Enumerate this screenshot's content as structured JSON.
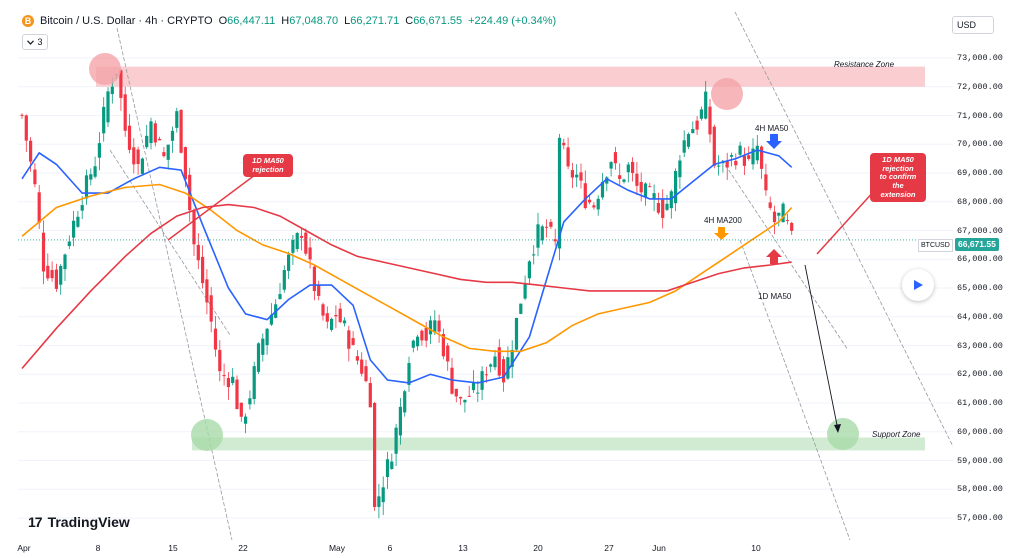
{
  "header": {
    "symbol": "Bitcoin / U.S. Dollar · 4h · CRYPTO",
    "open_label": "O",
    "open": "66,447.11",
    "high_label": "H",
    "high": "67,048.70",
    "low_label": "L",
    "low": "66,271.71",
    "close_label": "C",
    "close": "66,671.55",
    "change": "+224.49 (+0.34%)",
    "coin_glyph": "B"
  },
  "collapse_button": {
    "count": "3",
    "icon": "chevron-down-icon"
  },
  "currency_button": "USD",
  "price_badge": "66,671.55",
  "symbol_badge": "BTCUSD",
  "logo_text": "TradingView",
  "logo_mark": "17",
  "colors": {
    "up": "#089981",
    "down": "#f23645",
    "ma_blue": "#2962ff",
    "ma_orange": "#ff9800",
    "ma_red": "#e53945",
    "zone_red": "#f8b4b8",
    "zone_green": "#b7e1b8"
  },
  "chart_data": {
    "type": "candlestick",
    "timeframe": "4h",
    "y_ticks": [
      "73,000.00",
      "72,000.00",
      "71,000.00",
      "70,000.00",
      "69,000.00",
      "68,000.00",
      "67,000.00",
      "66,000.00",
      "65,000.00",
      "64,000.00",
      "63,000.00",
      "62,000.00",
      "61,000.00",
      "60,000.00",
      "59,000.00",
      "58,000.00",
      "57,000.00"
    ],
    "x_ticks": [
      "Apr",
      "8",
      "15",
      "22",
      "May",
      "6",
      "13",
      "20",
      "27",
      "Jun",
      "10"
    ],
    "ylim": [
      56600,
      73800
    ],
    "close_path": [
      [
        0,
        71000
      ],
      [
        3,
        68500
      ],
      [
        5,
        65800
      ],
      [
        8,
        65200
      ],
      [
        11,
        66800
      ],
      [
        14,
        68200
      ],
      [
        17,
        69400
      ],
      [
        20,
        71800
      ],
      [
        22,
        72600
      ],
      [
        24,
        70500
      ],
      [
        27,
        69200
      ],
      [
        30,
        70800
      ],
      [
        33,
        69500
      ],
      [
        36,
        71000
      ],
      [
        38,
        69000
      ],
      [
        40,
        66500
      ],
      [
        42,
        65200
      ],
      [
        44,
        63800
      ],
      [
        46,
        62000
      ],
      [
        49,
        61800
      ],
      [
        51,
        60200
      ],
      [
        53,
        61300
      ],
      [
        55,
        62800
      ],
      [
        57,
        63700
      ],
      [
        59,
        64500
      ],
      [
        61,
        65600
      ],
      [
        63,
        66400
      ],
      [
        65,
        67000
      ],
      [
        67,
        65700
      ],
      [
        69,
        64400
      ],
      [
        71,
        63600
      ],
      [
        73,
        64100
      ],
      [
        75,
        63600
      ],
      [
        77,
        62800
      ],
      [
        79,
        62200
      ],
      [
        81,
        61200
      ],
      [
        82,
        57300
      ],
      [
        84,
        58300
      ],
      [
        86,
        59300
      ],
      [
        88,
        60800
      ],
      [
        90,
        62700
      ],
      [
        92,
        63600
      ],
      [
        94,
        63300
      ],
      [
        96,
        63900
      ],
      [
        98,
        62900
      ],
      [
        100,
        61600
      ],
      [
        102,
        61000
      ],
      [
        104,
        61300
      ],
      [
        106,
        61500
      ],
      [
        108,
        62200
      ],
      [
        110,
        62700
      ],
      [
        112,
        61900
      ],
      [
        114,
        63100
      ],
      [
        116,
        64600
      ],
      [
        118,
        66100
      ],
      [
        120,
        66900
      ],
      [
        122,
        67100
      ],
      [
        124,
        66500
      ],
      [
        125,
        70300
      ],
      [
        127,
        69000
      ],
      [
        129,
        68900
      ],
      [
        131,
        68100
      ],
      [
        133,
        67900
      ],
      [
        135,
        68800
      ],
      [
        137,
        69500
      ],
      [
        139,
        68700
      ],
      [
        141,
        69200
      ],
      [
        143,
        68500
      ],
      [
        145,
        68300
      ],
      [
        147,
        68100
      ],
      [
        149,
        67700
      ],
      [
        151,
        68200
      ],
      [
        153,
        69700
      ],
      [
        155,
        70500
      ],
      [
        157,
        70700
      ],
      [
        159,
        71500
      ],
      [
        161,
        69300
      ],
      [
        163,
        69200
      ],
      [
        165,
        69500
      ],
      [
        167,
        69700
      ],
      [
        169,
        69300
      ],
      [
        171,
        69900
      ],
      [
        173,
        68100
      ],
      [
        175,
        67300
      ],
      [
        177,
        67600
      ],
      [
        179,
        66671.55
      ]
    ],
    "ma_series": [
      {
        "name": "4H MA50",
        "color": "#2962ff",
        "points": [
          [
            0,
            68800
          ],
          [
            4,
            69700
          ],
          [
            8,
            69300
          ],
          [
            14,
            68300
          ],
          [
            20,
            68300
          ],
          [
            26,
            68800
          ],
          [
            32,
            69200
          ],
          [
            37,
            69100
          ],
          [
            42,
            67200
          ],
          [
            48,
            65000
          ],
          [
            52,
            64100
          ],
          [
            57,
            63900
          ],
          [
            62,
            64600
          ],
          [
            67,
            65100
          ],
          [
            72,
            65100
          ],
          [
            77,
            64400
          ],
          [
            81,
            62500
          ],
          [
            85,
            61800
          ],
          [
            90,
            61700
          ],
          [
            95,
            62000
          ],
          [
            100,
            61800
          ],
          [
            106,
            61700
          ],
          [
            112,
            61900
          ],
          [
            118,
            63300
          ],
          [
            122,
            65300
          ],
          [
            126,
            67300
          ],
          [
            131,
            68100
          ],
          [
            136,
            68800
          ],
          [
            141,
            68400
          ],
          [
            146,
            68100
          ],
          [
            151,
            68100
          ],
          [
            156,
            68700
          ],
          [
            161,
            69300
          ],
          [
            166,
            69500
          ],
          [
            171,
            69800
          ],
          [
            176,
            69600
          ],
          [
            179,
            69200
          ]
        ]
      },
      {
        "name": "4H MA200",
        "color": "#ff9800",
        "points": [
          [
            0,
            66800
          ],
          [
            8,
            67800
          ],
          [
            16,
            68200
          ],
          [
            24,
            68500
          ],
          [
            32,
            68600
          ],
          [
            38,
            68300
          ],
          [
            44,
            67700
          ],
          [
            50,
            67000
          ],
          [
            56,
            66500
          ],
          [
            62,
            66200
          ],
          [
            68,
            65800
          ],
          [
            74,
            65300
          ],
          [
            80,
            64800
          ],
          [
            86,
            64300
          ],
          [
            92,
            63800
          ],
          [
            98,
            63300
          ],
          [
            104,
            62900
          ],
          [
            110,
            62800
          ],
          [
            116,
            62800
          ],
          [
            122,
            63100
          ],
          [
            128,
            63700
          ],
          [
            134,
            64100
          ],
          [
            140,
            64300
          ],
          [
            146,
            64500
          ],
          [
            152,
            64900
          ],
          [
            158,
            65500
          ],
          [
            164,
            66100
          ],
          [
            170,
            66700
          ],
          [
            176,
            67300
          ],
          [
            179,
            67800
          ]
        ]
      },
      {
        "name": "1D MA50",
        "color": "#e53945",
        "points": [
          [
            0,
            62200
          ],
          [
            8,
            63600
          ],
          [
            16,
            64900
          ],
          [
            24,
            66100
          ],
          [
            30,
            66900
          ],
          [
            36,
            67500
          ],
          [
            42,
            67800
          ],
          [
            48,
            67900
          ],
          [
            54,
            67800
          ],
          [
            60,
            67500
          ],
          [
            66,
            67000
          ],
          [
            72,
            66500
          ],
          [
            78,
            66100
          ],
          [
            84,
            65900
          ],
          [
            90,
            65700
          ],
          [
            96,
            65500
          ],
          [
            102,
            65300
          ],
          [
            108,
            65200
          ],
          [
            114,
            65200
          ],
          [
            120,
            65100
          ],
          [
            126,
            65000
          ],
          [
            132,
            64900
          ],
          [
            138,
            64900
          ],
          [
            144,
            64900
          ],
          [
            150,
            64900
          ],
          [
            156,
            65200
          ],
          [
            162,
            65500
          ],
          [
            168,
            65700
          ],
          [
            174,
            65800
          ],
          [
            179,
            65900
          ]
        ]
      }
    ],
    "zones": [
      {
        "name": "Resistance Zone",
        "from": 72000,
        "to": 72700
      },
      {
        "name": "Support Zone",
        "from": 59350,
        "to": 59800
      }
    ],
    "annotations": {
      "rejection_left": "1D MA50\nrejection",
      "rejection_right": "1D MA50\nrejection\nto confirm\nthe extension",
      "ma50_4h": "4H MA50",
      "ma200_4h": "4H MA200",
      "ma50_1d": "1D MA50"
    }
  }
}
